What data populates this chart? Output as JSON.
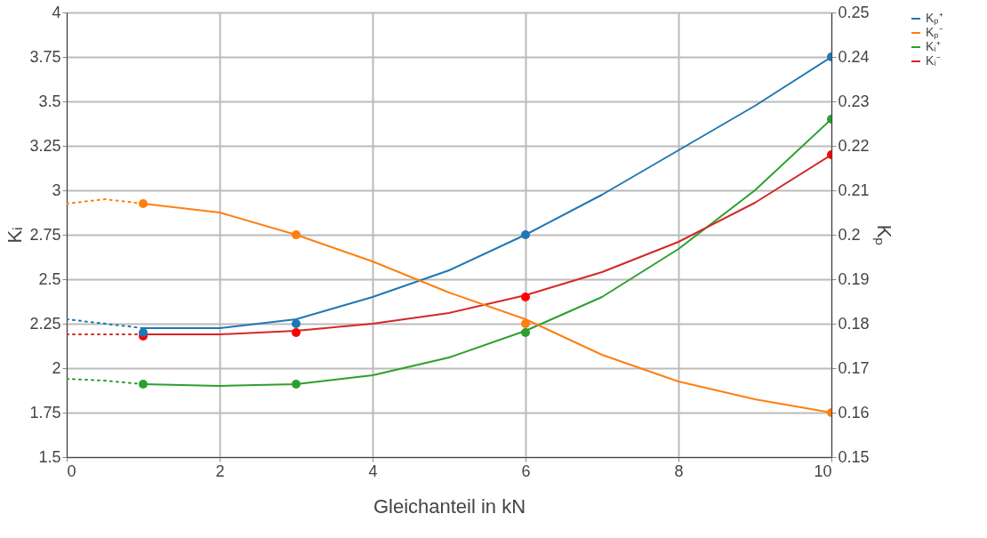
{
  "chart_data": {
    "type": "line",
    "xlabel": "Gleichanteil in  kN",
    "ylabel": "Kᵢ",
    "y2label": "Kₚ",
    "xlim": [
      0,
      10
    ],
    "xticks": [
      0,
      2,
      4,
      6,
      8,
      10
    ],
    "ylim": [
      1.5,
      4
    ],
    "yticks": [
      1.5,
      1.75,
      2,
      2.25,
      2.5,
      2.75,
      3,
      3.25,
      3.5,
      3.75,
      4
    ],
    "y2lim": [
      0.15,
      0.25
    ],
    "y2ticks": [
      0.15,
      0.16,
      0.17,
      0.18,
      0.19,
      0.2,
      0.21,
      0.22,
      0.23,
      0.24,
      0.25
    ],
    "grid": true,
    "legend": "top right",
    "series": [
      {
        "name": "Kₚ⁺",
        "color": "#1f77b4",
        "axis": "y2",
        "x": [
          1,
          2,
          3,
          4,
          5,
          6,
          7,
          8,
          9,
          10
        ],
        "values": [
          0.179,
          0.179,
          0.181,
          0.186,
          0.192,
          0.2,
          0.209,
          0.219,
          0.229,
          0.24
        ]
      },
      {
        "name": "Kₚ⁻",
        "color": "#ff7f0e",
        "axis": "y2",
        "x": [
          1,
          2,
          3,
          4,
          5,
          6,
          7,
          8,
          9,
          10
        ],
        "values": [
          0.207,
          0.205,
          0.2,
          0.194,
          0.187,
          0.181,
          0.173,
          0.167,
          0.163,
          0.16
        ]
      },
      {
        "name": "Kᵢ⁺",
        "color": "#2ca02c",
        "x": [
          1,
          2,
          3,
          4,
          5,
          6,
          7,
          8,
          9,
          10
        ],
        "values": [
          1.91,
          1.9,
          1.91,
          1.96,
          2.06,
          2.21,
          2.4,
          2.67,
          3.0,
          3.4
        ]
      },
      {
        "name": "Kᵢ⁻",
        "color": "#d62728",
        "x": [
          1,
          2,
          3,
          4,
          5,
          6,
          7,
          8,
          9,
          10
        ],
        "values": [
          2.19,
          2.19,
          2.21,
          2.25,
          2.31,
          2.41,
          2.54,
          2.71,
          2.93,
          3.2
        ]
      },
      {
        "color": "#1f77b4",
        "axis": "y2",
        "type": "line",
        "line_style": "dotted",
        "x": [
          0,
          0.5,
          1
        ],
        "values": [
          0.181,
          0.18,
          0.179
        ]
      },
      {
        "color": "#ff7f0e",
        "axis": "y2",
        "type": "line",
        "line_style": "dotted",
        "x": [
          0,
          0.5,
          1
        ],
        "values": [
          0.207,
          0.208,
          0.207
        ]
      },
      {
        "color": "#2ca02c",
        "type": "line",
        "line_style": "dotted",
        "x": [
          0,
          0.5,
          1
        ],
        "values": [
          1.94,
          1.93,
          1.91
        ]
      },
      {
        "color": "#d62728",
        "type": "line",
        "line_style": "dotted",
        "x": [
          0,
          0.5,
          1
        ],
        "values": [
          2.19,
          2.19,
          2.19
        ]
      },
      {
        "color": "#1f77b4",
        "axis": "y2",
        "type": "scatter",
        "marker": "circle",
        "x": [
          1,
          3,
          6,
          10
        ],
        "values": [
          0.178,
          0.18,
          0.2,
          0.24
        ]
      },
      {
        "color": "#ff7f0e",
        "axis": "y2",
        "type": "scatter",
        "marker": "circle",
        "x": [
          1,
          3,
          6,
          10
        ],
        "values": [
          0.207,
          0.2,
          0.18,
          0.16
        ]
      },
      {
        "color": "#2ca02c",
        "type": "scatter",
        "marker": "circle",
        "x": [
          1,
          3,
          6,
          10
        ],
        "values": [
          1.91,
          1.91,
          2.2,
          3.4
        ]
      },
      {
        "color": "#ff0000",
        "type": "scatter",
        "marker": "circle",
        "x": [
          1,
          3,
          6,
          10
        ],
        "values": [
          2.18,
          2.2,
          2.4,
          3.2
        ]
      }
    ]
  }
}
